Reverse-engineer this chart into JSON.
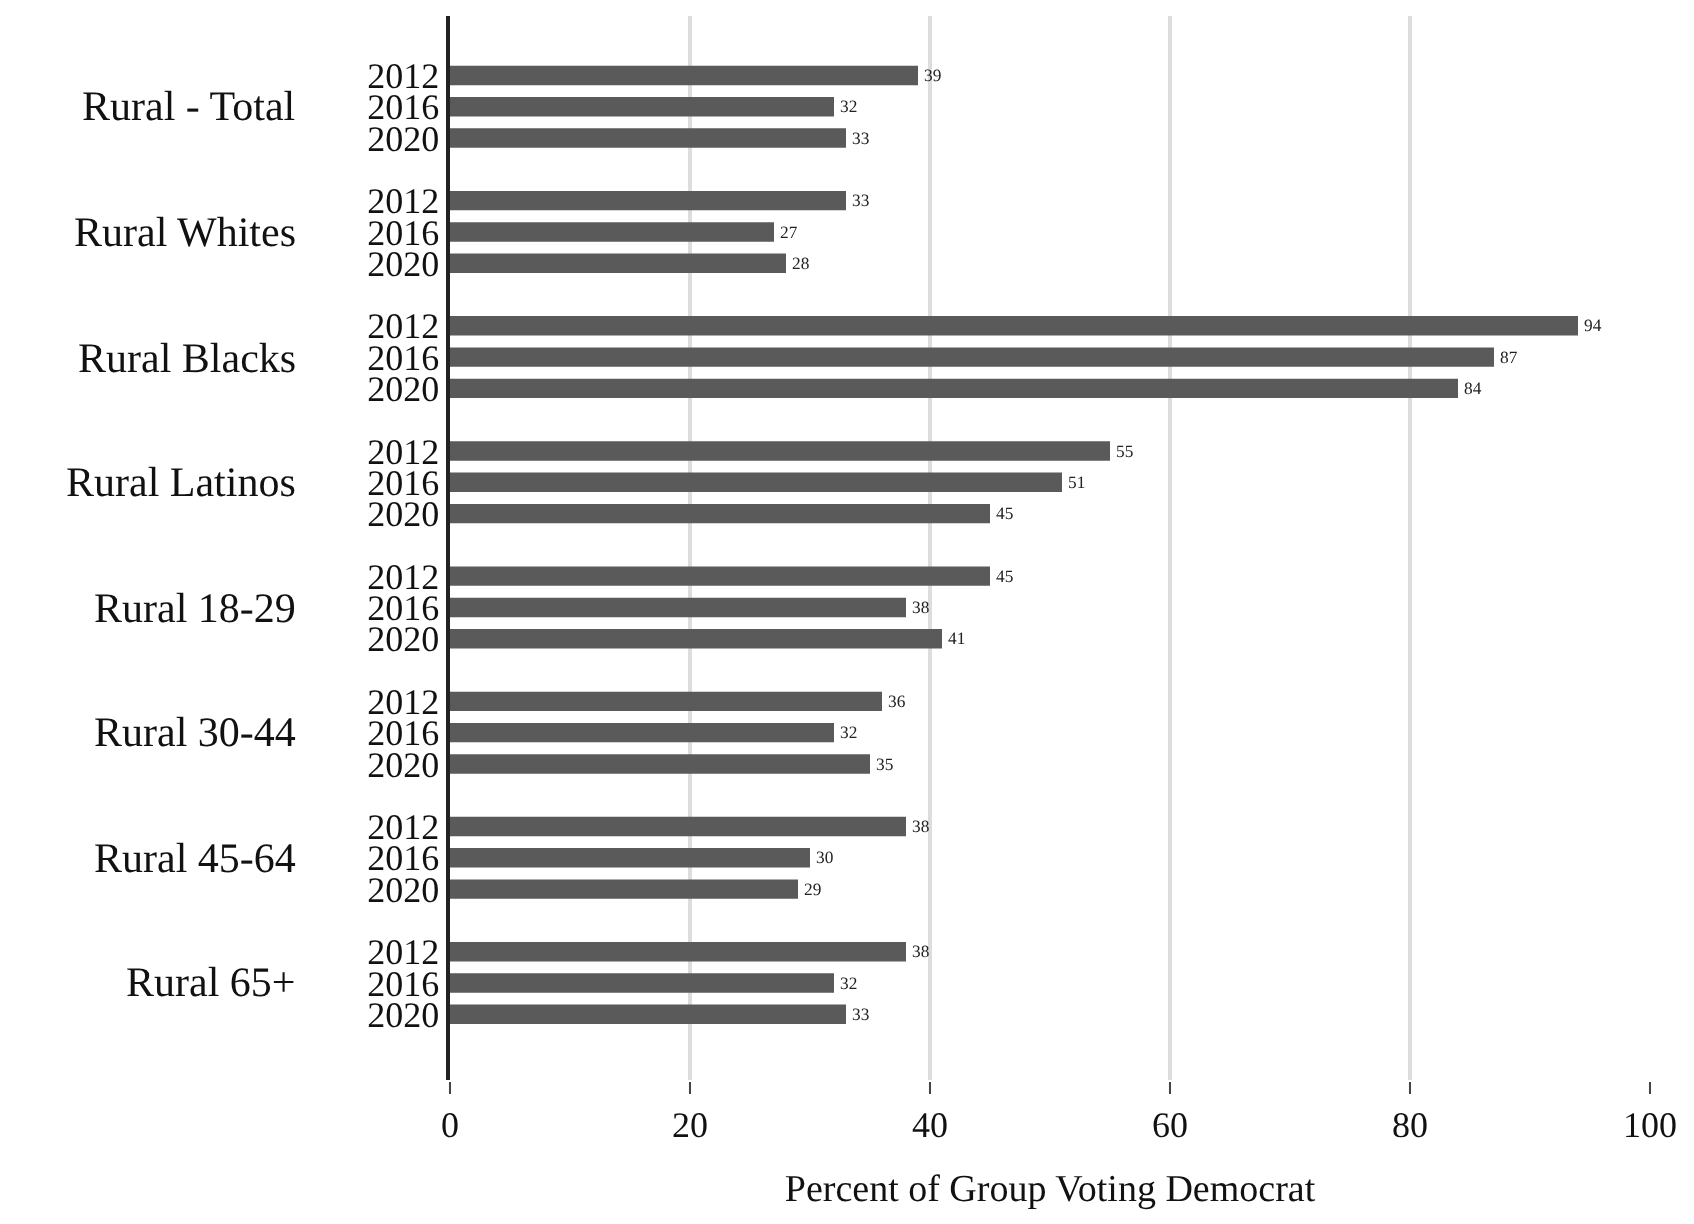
{
  "chart_data": {
    "type": "bar",
    "orientation": "horizontal",
    "xlabel": "Percent of Group Voting Democrat",
    "categories": [
      "Rural - Total",
      "Rural Whites",
      "Rural Blacks",
      "Rural Latinos",
      "Rural 18-29",
      "Rural 30-44",
      "Rural 45-64",
      "Rural 65+"
    ],
    "series": [
      {
        "name": "2012",
        "color": "#5a5a5a",
        "values": [
          39,
          33,
          94,
          55,
          45,
          36,
          38,
          38
        ]
      },
      {
        "name": "2016",
        "color": "#5a5a5a",
        "values": [
          32,
          27,
          87,
          51,
          38,
          32,
          30,
          32
        ]
      },
      {
        "name": "2020",
        "color": "#5a5a5a",
        "values": [
          33,
          28,
          84,
          45,
          41,
          35,
          29,
          33
        ]
      }
    ],
    "xlim": [
      0,
      100
    ],
    "xticks": [
      0,
      20,
      40,
      60,
      80,
      100
    ],
    "grid": "x",
    "legend": false,
    "data_labels": true
  }
}
